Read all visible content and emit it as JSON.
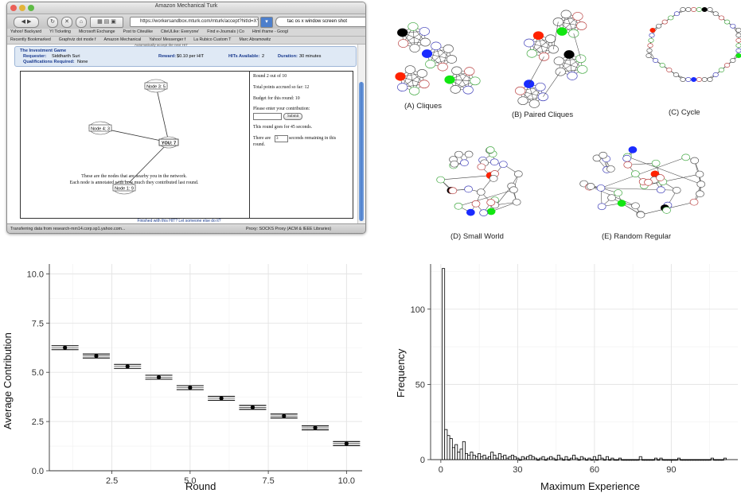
{
  "browser": {
    "window_title": "Amazon Mechanical Turk",
    "url": "https://workersandbox.mturk.com/mturk/accept?hitId=XYZ",
    "search_text": "tac os x window screen shot",
    "bookmarks_row1": [
      "Yahoo! Backyard",
      "YI Ticketing",
      "Microsoft Exchange",
      "Post to Citeulike",
      "CiteULike: Everyone'",
      "Find e-Journals | Co",
      "Html iframe - Googl"
    ],
    "bookmarks_row2": [
      "Recently Bookmarked",
      "Graphviz dot mode f",
      "Amazon Mechanical",
      "Yahoo! Messenger f",
      "La Rubico Custom T",
      "Marc Abramowitz"
    ],
    "status": "Transferring data from research-mm14.corp.sp1.yahoo.com...",
    "proxy": "Proxy: SOCKS Proxy (ACM & IEEE Libraries)"
  },
  "hit": {
    "title": "The Investment Game",
    "requester_label": "Requester:",
    "requester": "Siddharth Suri",
    "reward_label": "Reward:",
    "reward": "$0.10 per HIT",
    "hits_label": "HITs Available:",
    "hits": "2",
    "duration_label": "Duration:",
    "duration": "30 minutes",
    "qual_label": "Qualifications Required:",
    "qual": "None",
    "auto_accept": "Automatically accept the next HIT"
  },
  "network": {
    "nodes": [
      {
        "label": "Node 3: 5"
      },
      {
        "label": "Node 4: 3"
      },
      {
        "label": "YOU: 7"
      },
      {
        "label": "Node 1: 9"
      }
    ],
    "caption_line1": "These are the nodes that are nearby you in the network.",
    "caption_line2": "Each node is annotated with how much they contributed last round."
  },
  "panel": {
    "round": "Round 2 out of 10",
    "points": "Total points accrued so far: 12",
    "budget": "Budget for this round: 10",
    "prompt": "Please enter your contribution:",
    "submit": "Submit",
    "duration": "This round goes for 45 seconds.",
    "remain_pre": "There are",
    "remain_value": "3",
    "remain_post": "seconds remaining in this",
    "remain_post2": "round."
  },
  "finished": "Finished with this HIT?     Let someone else do it?",
  "graphs": {
    "labels": [
      "(A) Cliques",
      "(B) Paired Cliques",
      "(C) Cycle",
      "(D) Small World",
      "(E) Random Regular"
    ],
    "colors": {
      "red": "#ff2200",
      "blue": "#1a2bff",
      "green": "#11e611",
      "black": "#000000"
    }
  },
  "chart_data": [
    {
      "type": "scatter",
      "title": "",
      "xlabel": "Round",
      "ylabel": "Average Contribution",
      "xlim": [
        0.5,
        10.5
      ],
      "ylim": [
        0,
        10.5
      ],
      "xticks": [
        "2.5",
        "5.0",
        "7.5",
        "10.0"
      ],
      "yticks": [
        "0.0",
        "2.5",
        "5.0",
        "7.5",
        "10.0"
      ],
      "grid": true,
      "x": [
        1,
        2,
        3,
        4,
        5,
        6,
        7,
        8,
        9,
        10
      ],
      "y": [
        6.25,
        5.83,
        5.3,
        4.75,
        4.22,
        3.68,
        3.22,
        2.78,
        2.18,
        1.38
      ]
    },
    {
      "type": "bar",
      "title": "",
      "xlabel": "Maximum Experience",
      "ylabel": "Frequency",
      "xlim": [
        -4,
        116
      ],
      "ylim": [
        0,
        130
      ],
      "xticks": [
        "0",
        "30",
        "60",
        "90"
      ],
      "yticks": [
        "0",
        "50",
        "100"
      ],
      "grid": true,
      "x": [
        1,
        2,
        3,
        4,
        5,
        6,
        7,
        8,
        9,
        10,
        11,
        12,
        13,
        14,
        15,
        16,
        17,
        18,
        19,
        20,
        21,
        22,
        23,
        24,
        25,
        26,
        27,
        28,
        29,
        30,
        31,
        32,
        33,
        34,
        35,
        36,
        37,
        38,
        39,
        40,
        41,
        42,
        43,
        44,
        45,
        46,
        47,
        48,
        49,
        50,
        51,
        52,
        53,
        54,
        55,
        56,
        57,
        58,
        59,
        60,
        61,
        62,
        63,
        64,
        65,
        66,
        67,
        68,
        69,
        70,
        71,
        72,
        73,
        74,
        75,
        76,
        77,
        78,
        79,
        80,
        81,
        82,
        83,
        84,
        85,
        86,
        87,
        88,
        89,
        90,
        91,
        92,
        93,
        94,
        95,
        96,
        97,
        98,
        99,
        100,
        101,
        102,
        103,
        104,
        105,
        106,
        107,
        108,
        109,
        110,
        111
      ],
      "values": [
        127,
        20,
        16,
        14,
        8,
        10,
        5,
        7,
        12,
        4,
        3,
        5,
        3,
        2,
        4,
        2,
        3,
        1,
        2,
        5,
        3,
        1,
        4,
        2,
        3,
        1,
        2,
        3,
        2,
        1,
        0,
        2,
        1,
        2,
        3,
        2,
        1,
        0,
        1,
        2,
        0,
        1,
        2,
        1,
        0,
        3,
        1,
        0,
        2,
        0,
        1,
        3,
        1,
        0,
        2,
        1,
        0,
        1,
        0,
        2,
        0,
        3,
        1,
        0,
        2,
        0,
        1,
        0,
        0,
        1,
        0,
        0,
        0,
        0,
        0,
        0,
        0,
        2,
        0,
        0,
        0,
        0,
        0,
        1,
        0,
        1,
        0,
        0,
        0,
        0,
        0,
        0,
        1,
        0,
        0,
        0,
        0,
        0,
        0,
        0,
        0,
        0,
        0,
        0,
        0,
        1,
        0,
        0,
        0,
        0,
        1
      ]
    }
  ]
}
